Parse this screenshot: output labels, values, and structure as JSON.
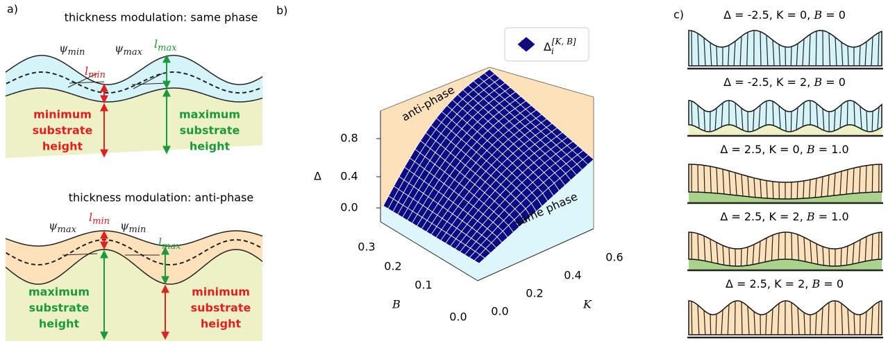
{
  "panel_a": {
    "label": "a)",
    "same_phase": {
      "title": "thickness modulation: same phase",
      "psi_min": {
        "symbol": "ψ",
        "sub": "min"
      },
      "psi_max": {
        "symbol": "ψ",
        "sub": "max"
      },
      "l_max": {
        "symbol": "l",
        "sub": "max"
      },
      "l_min": {
        "symbol": "l",
        "sub": "min"
      },
      "minimum_label": [
        "minimum",
        "substrate",
        "height"
      ],
      "maximum_label": [
        "maximum",
        "substrate",
        "height"
      ]
    },
    "anti_phase": {
      "title": "thickness modulation: anti-phase",
      "psi_max": {
        "symbol": "ψ",
        "sub": "max"
      },
      "l_min": {
        "symbol": "l",
        "sub": "min"
      },
      "psi_min": {
        "symbol": "ψ",
        "sub": "min"
      },
      "l_max": {
        "symbol": "l",
        "sub": "max"
      },
      "maximum_label": [
        "maximum",
        "substrate",
        "height"
      ],
      "minimum_label": [
        "minimum",
        "substrate",
        "height"
      ]
    }
  },
  "panel_b": {
    "label": "b)",
    "legend": {
      "symbol": "Δ",
      "sub": "i",
      "sup": "[K, B]"
    },
    "z_label": "Δ",
    "z_ticks": [
      "0.0",
      "0.4",
      "0.8"
    ],
    "b_label": "B",
    "b_ticks": [
      "0.0",
      "0.1",
      "0.2",
      "0.3"
    ],
    "k_label": "K",
    "k_ticks": [
      "0.0",
      "0.2",
      "0.4",
      "0.6"
    ],
    "annotations": {
      "anti": "anti-phase",
      "same": "same phase"
    }
  },
  "panel_c": {
    "label": "c)",
    "rows": [
      {
        "prefix": "Δ = -2.5, K = 0, ",
        "var": "B",
        "suffix": " = 0"
      },
      {
        "prefix": "Δ = -2.5, K = 2, ",
        "var": "B",
        "suffix": " = 0"
      },
      {
        "prefix": "Δ = 2.5, K = 0, ",
        "var": "B",
        "suffix": " = 1.0"
      },
      {
        "prefix": "Δ = 2.5, K = 2, ",
        "var": "B",
        "suffix": " = 1.0"
      },
      {
        "prefix": "Δ = 2.5, K = 2, ",
        "var": "B",
        "suffix": " = 0"
      }
    ]
  }
}
